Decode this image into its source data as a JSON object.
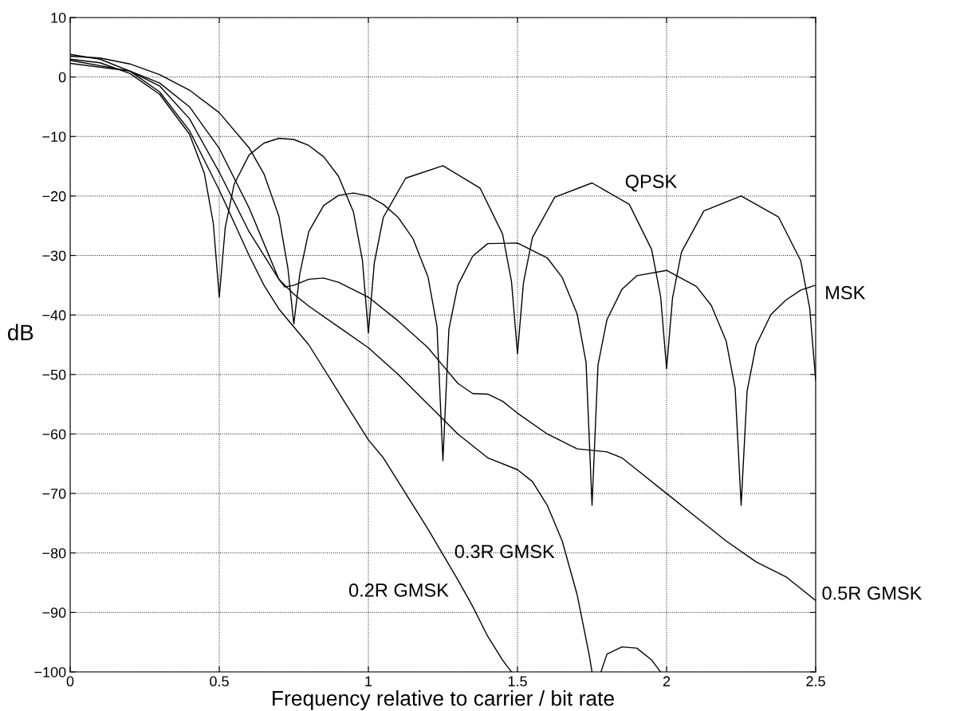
{
  "chart_data": {
    "type": "line",
    "xlabel": "Frequency relative to carrier / bit rate",
    "ylabel": "dB",
    "xlim": [
      0,
      2.5
    ],
    "xticks": [
      0,
      0.5,
      1,
      1.5,
      2,
      2.5
    ],
    "ylim": [
      -100,
      10
    ],
    "yticks": [
      {
        "value": -100,
        "label": "−100"
      },
      {
        "value": -90,
        "label": "−90"
      },
      {
        "value": -80,
        "label": "−80"
      },
      {
        "value": -70,
        "label": "−70"
      },
      {
        "value": -60,
        "label": "−60"
      },
      {
        "value": -50,
        "label": "−50"
      },
      {
        "value": -40,
        "label": "−40"
      },
      {
        "value": -30,
        "label": "−30"
      },
      {
        "value": -20,
        "label": "−20"
      },
      {
        "value": -10,
        "label": "−10"
      },
      0,
      10
    ],
    "grid": true,
    "legend": false,
    "marker": "none",
    "line_style": "solid",
    "series": [
      {
        "name": "QPSK",
        "color": "#000000",
        "x": [
          0,
          0.1,
          0.2,
          0.3,
          0.4,
          0.45,
          0.48,
          0.5,
          0.52,
          0.55,
          0.6,
          0.65,
          0.7,
          0.75,
          0.8,
          0.85,
          0.9,
          0.95,
          0.98,
          1.0,
          1.02,
          1.05,
          1.125,
          1.25,
          1.375,
          1.45,
          1.48,
          1.5,
          1.52,
          1.55,
          1.625,
          1.75,
          1.875,
          1.95,
          1.98,
          2.0,
          2.02,
          2.05,
          2.125,
          2.25,
          2.375,
          2.45,
          2.48,
          2.5
        ],
        "values": [
          3,
          2.4,
          0.6,
          -2.9,
          -9.6,
          -16.2,
          -24.6,
          -37,
          -25.3,
          -18,
          -13.1,
          -11.1,
          -10.3,
          -10.5,
          -11.5,
          -13.4,
          -16.7,
          -22.7,
          -30.8,
          -43,
          -31.2,
          -23.6,
          -17,
          -14.9,
          -18.7,
          -26.4,
          -34.4,
          -46.5,
          -34.6,
          -27,
          -20.2,
          -17.8,
          -21.4,
          -29,
          -36.9,
          -49,
          -37.1,
          -29.4,
          -22.5,
          -20,
          -23.5,
          -30.9,
          -38.9,
          -51
        ]
      },
      {
        "name": "MSK",
        "color": "#000000",
        "x": [
          0,
          0.1,
          0.2,
          0.3,
          0.4,
          0.5,
          0.6,
          0.65,
          0.7,
          0.73,
          0.75,
          0.77,
          0.8,
          0.85,
          0.9,
          0.95,
          1.0,
          1.05,
          1.1,
          1.15,
          1.2,
          1.23,
          1.25,
          1.27,
          1.3,
          1.35,
          1.4,
          1.5,
          1.6,
          1.65,
          1.7,
          1.73,
          1.75,
          1.77,
          1.8,
          1.85,
          1.9,
          2.0,
          2.1,
          2.15,
          2.2,
          2.23,
          2.25,
          2.27,
          2.3,
          2.35,
          2.4,
          2.45,
          2.5
        ],
        "values": [
          3.5,
          3.2,
          2.2,
          0.4,
          -2.2,
          -6,
          -11.9,
          -16.3,
          -23.4,
          -32.1,
          -41.5,
          -33.1,
          -26,
          -21.6,
          -19.9,
          -19.5,
          -20,
          -21.4,
          -23.6,
          -27.2,
          -33.6,
          -41.9,
          -64.5,
          -42.4,
          -35,
          -30.1,
          -28,
          -27.9,
          -30.4,
          -33.7,
          -39.8,
          -48,
          -72,
          -48.4,
          -40.8,
          -35.7,
          -33.4,
          -32.5,
          -35.2,
          -38.4,
          -44.4,
          -52.4,
          -72,
          -52.8,
          -45.1,
          -39.9,
          -37.5,
          -35.8,
          -35
        ]
      },
      {
        "name": "0.5R GMSK",
        "color": "#000000",
        "x": [
          0,
          0.2,
          0.3,
          0.4,
          0.5,
          0.6,
          0.65,
          0.7,
          0.72,
          0.75,
          0.8,
          0.85,
          0.9,
          1.0,
          1.1,
          1.2,
          1.25,
          1.3,
          1.35,
          1.4,
          1.45,
          1.5,
          1.6,
          1.7,
          1.8,
          1.85,
          1.9,
          2.0,
          2.1,
          2.2,
          2.3,
          2.4,
          2.5
        ],
        "values": [
          2.3,
          1,
          -1,
          -5,
          -12,
          -22,
          -28,
          -34,
          -35.3,
          -35,
          -34,
          -33.8,
          -34.5,
          -37,
          -41,
          -45.5,
          -48.5,
          -51.5,
          -53.2,
          -53.3,
          -54.5,
          -56.5,
          -60,
          -62.5,
          -63,
          -64,
          -66,
          -70,
          -74,
          -78,
          -81.5,
          -84,
          -88
        ]
      },
      {
        "name": "0.3R GMSK",
        "color": "#000000",
        "x": [
          0,
          0.2,
          0.3,
          0.4,
          0.5,
          0.6,
          0.7,
          0.75,
          0.8,
          0.9,
          1.0,
          1.1,
          1.2,
          1.3,
          1.4,
          1.5,
          1.55,
          1.6,
          1.65,
          1.7,
          1.74,
          1.75,
          1.76,
          1.78,
          1.8,
          1.85,
          1.9,
          1.95,
          1.98
        ],
        "values": [
          2.8,
          1,
          -1.5,
          -7,
          -16,
          -26,
          -34,
          -36.5,
          -38.5,
          -42,
          -45.5,
          -50,
          -55,
          -60,
          -64,
          -66,
          -68,
          -72,
          -78,
          -87,
          -97,
          -100,
          null,
          -100,
          -97,
          -95.8,
          -96,
          -98,
          -100
        ]
      },
      {
        "name": "0.2R GMSK",
        "color": "#000000",
        "x": [
          0,
          0.1,
          0.2,
          0.3,
          0.4,
          0.5,
          0.6,
          0.65,
          0.7,
          0.8,
          0.9,
          1.0,
          1.05,
          1.1,
          1.2,
          1.3,
          1.35,
          1.4,
          1.45,
          1.48
        ],
        "values": [
          3.8,
          3,
          1,
          -2.5,
          -9,
          -19,
          -30,
          -35,
          -39,
          -45,
          -53,
          -61,
          -64,
          -68,
          -76,
          -84.5,
          -89,
          -94,
          -98,
          -100
        ]
      }
    ]
  }
}
